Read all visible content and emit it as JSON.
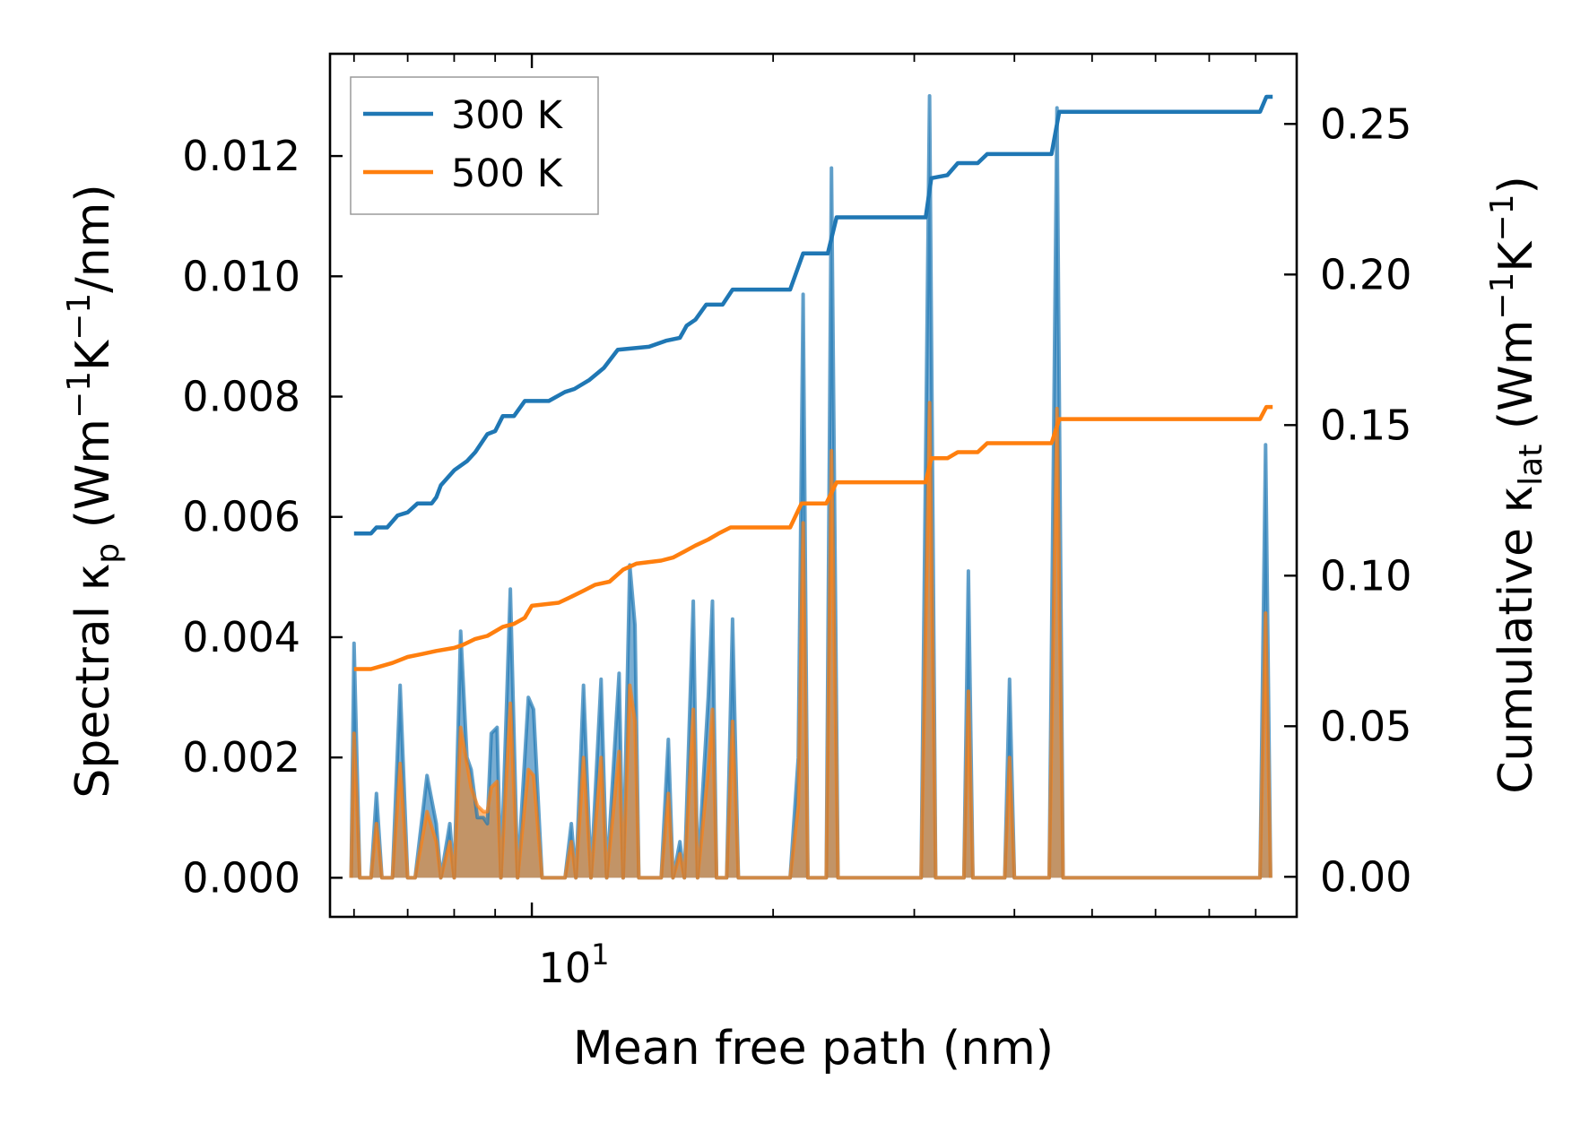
{
  "chart_data": {
    "type": "line",
    "title": "",
    "xlabel": "Mean free path (nm)",
    "xscale": "log",
    "xlim": [
      5.6,
      90
    ],
    "x_tick_label": "10",
    "x_tick_exponent": "1",
    "ylabel_left": {
      "prefix": "Spectral κ",
      "sub": "p",
      "units_open": " (Wm",
      "sup1": "−1",
      "mid": "K",
      "sup2": "−1",
      "units_close": "/nm)"
    },
    "ylabel_right": {
      "prefix": "Cumulative κ",
      "sub": "lat",
      "units_open": " (Wm",
      "sup1": "−1",
      "mid": "K",
      "sup2": "−1",
      "units_close": ")"
    },
    "ylim_left": [
      -0.00065,
      0.0137
    ],
    "ylim_right": [
      -0.0133,
      0.2733
    ],
    "left_ticks": [
      0.0,
      0.002,
      0.004,
      0.006,
      0.008,
      0.01,
      0.012
    ],
    "left_tick_labels": [
      "0.000",
      "0.002",
      "0.004",
      "0.006",
      "0.008",
      "0.010",
      "0.012"
    ],
    "right_ticks": [
      0.0,
      0.05,
      0.1,
      0.15,
      0.2,
      0.25
    ],
    "right_tick_labels": [
      "0.00",
      "0.05",
      "0.10",
      "0.15",
      "0.20",
      "0.25"
    ],
    "legend_position": "top-left",
    "series": [
      {
        "name": "300 K",
        "color": "#1f77b4",
        "cumulative": [
          [
            6.0,
            0.114
          ],
          [
            6.3,
            0.114
          ],
          [
            6.4,
            0.116
          ],
          [
            6.6,
            0.116
          ],
          [
            6.8,
            0.12
          ],
          [
            7.0,
            0.121
          ],
          [
            7.2,
            0.124
          ],
          [
            7.5,
            0.124
          ],
          [
            7.6,
            0.126
          ],
          [
            7.7,
            0.13
          ],
          [
            8.0,
            0.135
          ],
          [
            8.3,
            0.138
          ],
          [
            8.5,
            0.141
          ],
          [
            8.8,
            0.147
          ],
          [
            9.0,
            0.148
          ],
          [
            9.2,
            0.153
          ],
          [
            9.5,
            0.153
          ],
          [
            9.8,
            0.158
          ],
          [
            10.5,
            0.158
          ],
          [
            11.0,
            0.161
          ],
          [
            11.3,
            0.162
          ],
          [
            11.8,
            0.165
          ],
          [
            12.3,
            0.169
          ],
          [
            12.8,
            0.175
          ],
          [
            14.0,
            0.176
          ],
          [
            14.7,
            0.178
          ],
          [
            15.3,
            0.179
          ],
          [
            15.6,
            0.183
          ],
          [
            16.0,
            0.185
          ],
          [
            16.5,
            0.19
          ],
          [
            17.3,
            0.19
          ],
          [
            17.8,
            0.195
          ],
          [
            21.0,
            0.195
          ],
          [
            21.8,
            0.207
          ],
          [
            23.4,
            0.207
          ],
          [
            24.0,
            0.219
          ],
          [
            31.0,
            0.219
          ],
          [
            31.5,
            0.232
          ],
          [
            33.0,
            0.233
          ],
          [
            34.0,
            0.237
          ],
          [
            36.0,
            0.237
          ],
          [
            37.0,
            0.24
          ],
          [
            44.5,
            0.24
          ],
          [
            45.5,
            0.254
          ],
          [
            81.0,
            0.254
          ],
          [
            82.5,
            0.259
          ],
          [
            84.0,
            0.259
          ]
        ],
        "spectral": [
          [
            5.95,
            0
          ],
          [
            6.0,
            0.0039
          ],
          [
            6.1,
            0
          ],
          [
            6.3,
            0
          ],
          [
            6.4,
            0.0014
          ],
          [
            6.5,
            0
          ],
          [
            6.7,
            0
          ],
          [
            6.85,
            0.0032
          ],
          [
            7.0,
            0
          ],
          [
            7.15,
            0
          ],
          [
            7.4,
            0.0017
          ],
          [
            7.6,
            0.0009
          ],
          [
            7.7,
            0
          ],
          [
            7.9,
            0.0009
          ],
          [
            8.0,
            0
          ],
          [
            8.15,
            0.0041
          ],
          [
            8.3,
            0.002
          ],
          [
            8.4,
            0.0018
          ],
          [
            8.55,
            0.001
          ],
          [
            8.7,
            0.001
          ],
          [
            8.8,
            0.0009
          ],
          [
            8.9,
            0.0024
          ],
          [
            9.05,
            0.0025
          ],
          [
            9.15,
            0
          ],
          [
            9.4,
            0.0048
          ],
          [
            9.6,
            0
          ],
          [
            9.9,
            0.003
          ],
          [
            10.05,
            0.0028
          ],
          [
            10.3,
            0
          ],
          [
            11.0,
            0
          ],
          [
            11.2,
            0.0009
          ],
          [
            11.35,
            0
          ],
          [
            11.6,
            0.0032
          ],
          [
            11.85,
            0
          ],
          [
            12.2,
            0.0033
          ],
          [
            12.4,
            0
          ],
          [
            12.85,
            0.0034
          ],
          [
            13.0,
            0
          ],
          [
            13.25,
            0.0052
          ],
          [
            13.45,
            0.0042
          ],
          [
            13.6,
            0
          ],
          [
            14.5,
            0
          ],
          [
            14.8,
            0.0023
          ],
          [
            15.0,
            0
          ],
          [
            15.3,
            0.0006
          ],
          [
            15.5,
            0
          ],
          [
            15.9,
            0.0046
          ],
          [
            16.1,
            0
          ],
          [
            16.6,
            0.003
          ],
          [
            16.8,
            0.0046
          ],
          [
            17.0,
            0
          ],
          [
            17.5,
            0
          ],
          [
            17.8,
            0.0043
          ],
          [
            18.1,
            0
          ],
          [
            21.0,
            0
          ],
          [
            21.5,
            0.002
          ],
          [
            21.8,
            0.0097
          ],
          [
            22.1,
            0
          ],
          [
            23.3,
            0
          ],
          [
            23.65,
            0.0118
          ],
          [
            24.1,
            0
          ],
          [
            30.6,
            0
          ],
          [
            31.35,
            0.013
          ],
          [
            31.9,
            0
          ],
          [
            34.6,
            0
          ],
          [
            35.05,
            0.0051
          ],
          [
            35.5,
            0
          ],
          [
            38.9,
            0
          ],
          [
            39.45,
            0.0033
          ],
          [
            40.0,
            0
          ],
          [
            44.2,
            0
          ],
          [
            45.2,
            0.0128
          ],
          [
            46.0,
            0
          ],
          [
            81.0,
            0
          ],
          [
            82.3,
            0.0072
          ],
          [
            83.5,
            0
          ]
        ]
      },
      {
        "name": "500 K",
        "color": "#ff7f0e",
        "cumulative": [
          [
            6.0,
            0.069
          ],
          [
            6.3,
            0.069
          ],
          [
            6.5,
            0.07
          ],
          [
            6.7,
            0.071
          ],
          [
            7.0,
            0.073
          ],
          [
            7.3,
            0.074
          ],
          [
            7.6,
            0.075
          ],
          [
            8.0,
            0.076
          ],
          [
            8.2,
            0.077
          ],
          [
            8.5,
            0.079
          ],
          [
            8.8,
            0.08
          ],
          [
            9.2,
            0.083
          ],
          [
            9.5,
            0.084
          ],
          [
            9.8,
            0.086
          ],
          [
            10.0,
            0.09
          ],
          [
            10.8,
            0.091
          ],
          [
            11.2,
            0.093
          ],
          [
            11.6,
            0.095
          ],
          [
            12.0,
            0.097
          ],
          [
            12.5,
            0.098
          ],
          [
            13.0,
            0.102
          ],
          [
            13.5,
            0.104
          ],
          [
            14.5,
            0.105
          ],
          [
            15.0,
            0.106
          ],
          [
            15.5,
            0.108
          ],
          [
            16.0,
            0.11
          ],
          [
            16.6,
            0.112
          ],
          [
            17.1,
            0.114
          ],
          [
            17.7,
            0.116
          ],
          [
            21.0,
            0.116
          ],
          [
            21.7,
            0.124
          ],
          [
            23.3,
            0.124
          ],
          [
            24.0,
            0.131
          ],
          [
            31.0,
            0.131
          ],
          [
            31.5,
            0.139
          ],
          [
            33.0,
            0.139
          ],
          [
            34.0,
            0.141
          ],
          [
            36.0,
            0.141
          ],
          [
            37.0,
            0.144
          ],
          [
            44.5,
            0.144
          ],
          [
            45.5,
            0.152
          ],
          [
            81.0,
            0.152
          ],
          [
            82.5,
            0.156
          ],
          [
            84.0,
            0.156
          ]
        ],
        "spectral": [
          [
            5.95,
            0
          ],
          [
            6.0,
            0.0024
          ],
          [
            6.1,
            0
          ],
          [
            6.3,
            0
          ],
          [
            6.4,
            0.0009
          ],
          [
            6.5,
            0
          ],
          [
            6.7,
            0
          ],
          [
            6.85,
            0.0019
          ],
          [
            7.0,
            0
          ],
          [
            7.15,
            0
          ],
          [
            7.4,
            0.0011
          ],
          [
            7.6,
            0.0006
          ],
          [
            7.7,
            0
          ],
          [
            7.9,
            0.0006
          ],
          [
            8.0,
            0
          ],
          [
            8.15,
            0.0025
          ],
          [
            8.3,
            0.0019
          ],
          [
            8.4,
            0.0015
          ],
          [
            8.55,
            0.0012
          ],
          [
            8.7,
            0.0011
          ],
          [
            8.8,
            0.0011
          ],
          [
            8.9,
            0.0015
          ],
          [
            9.05,
            0.0016
          ],
          [
            9.15,
            0
          ],
          [
            9.4,
            0.0029
          ],
          [
            9.6,
            0
          ],
          [
            9.9,
            0.0018
          ],
          [
            10.05,
            0.0017
          ],
          [
            10.3,
            0
          ],
          [
            11.0,
            0
          ],
          [
            11.2,
            0.0006
          ],
          [
            11.35,
            0
          ],
          [
            11.6,
            0.002
          ],
          [
            11.85,
            0
          ],
          [
            12.2,
            0.002
          ],
          [
            12.4,
            0
          ],
          [
            12.85,
            0.0021
          ],
          [
            13.0,
            0
          ],
          [
            13.25,
            0.0032
          ],
          [
            13.45,
            0.0026
          ],
          [
            13.6,
            0
          ],
          [
            14.5,
            0
          ],
          [
            14.8,
            0.0014
          ],
          [
            15.0,
            0
          ],
          [
            15.3,
            0.0004
          ],
          [
            15.5,
            0
          ],
          [
            15.9,
            0.0028
          ],
          [
            16.1,
            0
          ],
          [
            16.6,
            0.0018
          ],
          [
            16.8,
            0.0028
          ],
          [
            17.0,
            0
          ],
          [
            17.5,
            0
          ],
          [
            17.8,
            0.0026
          ],
          [
            18.1,
            0
          ],
          [
            21.0,
            0
          ],
          [
            21.5,
            0.0012
          ],
          [
            21.8,
            0.0059
          ],
          [
            22.1,
            0
          ],
          [
            23.3,
            0
          ],
          [
            23.65,
            0.0071
          ],
          [
            24.1,
            0
          ],
          [
            30.6,
            0
          ],
          [
            31.35,
            0.0079
          ],
          [
            31.9,
            0
          ],
          [
            34.6,
            0
          ],
          [
            35.05,
            0.0031
          ],
          [
            35.5,
            0
          ],
          [
            38.9,
            0
          ],
          [
            39.45,
            0.002
          ],
          [
            40.0,
            0
          ],
          [
            44.2,
            0
          ],
          [
            45.2,
            0.0078
          ],
          [
            46.0,
            0
          ],
          [
            81.0,
            0
          ],
          [
            82.3,
            0.0044
          ],
          [
            83.5,
            0
          ]
        ]
      }
    ]
  }
}
